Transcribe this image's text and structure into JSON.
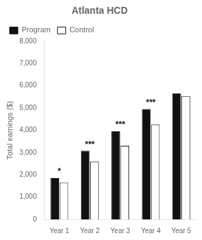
{
  "chart_data": {
    "type": "bar",
    "title": "Atlanta HCD",
    "ylabel": "Total earnings ($)",
    "categories": [
      "Year 1",
      "Year 2",
      "Year 3",
      "Year 4",
      "Year 5"
    ],
    "series": [
      {
        "name": "Program",
        "color": "#111111",
        "values": [
          1850,
          3080,
          3950,
          4950,
          5650
        ]
      },
      {
        "name": "Control",
        "color": "#ffffff",
        "values": [
          1650,
          2600,
          3300,
          4250,
          5530
        ]
      }
    ],
    "annotations": [
      {
        "category": "Year 1",
        "series": "Program",
        "text": "*"
      },
      {
        "category": "Year 2",
        "series": "Program",
        "text": "***"
      },
      {
        "category": "Year 3",
        "series": "Program",
        "text": "***"
      },
      {
        "category": "Year 4",
        "series": "Program",
        "text": "***"
      }
    ],
    "ylim": [
      0,
      8000
    ],
    "yticks": [
      0,
      {
        "value": 1000,
        "label": "1,000"
      },
      {
        "value": 2000,
        "label": "2,000"
      },
      {
        "value": 3000,
        "label": "3,000"
      },
      {
        "value": 4000,
        "label": "4,000"
      },
      {
        "value": 5000,
        "label": "5,000"
      },
      {
        "value": 6000,
        "label": "6,000"
      },
      {
        "value": 7000,
        "label": "7,000"
      },
      {
        "value": 8000,
        "label": "8,000"
      }
    ],
    "grid": false,
    "legend": "upper left"
  }
}
